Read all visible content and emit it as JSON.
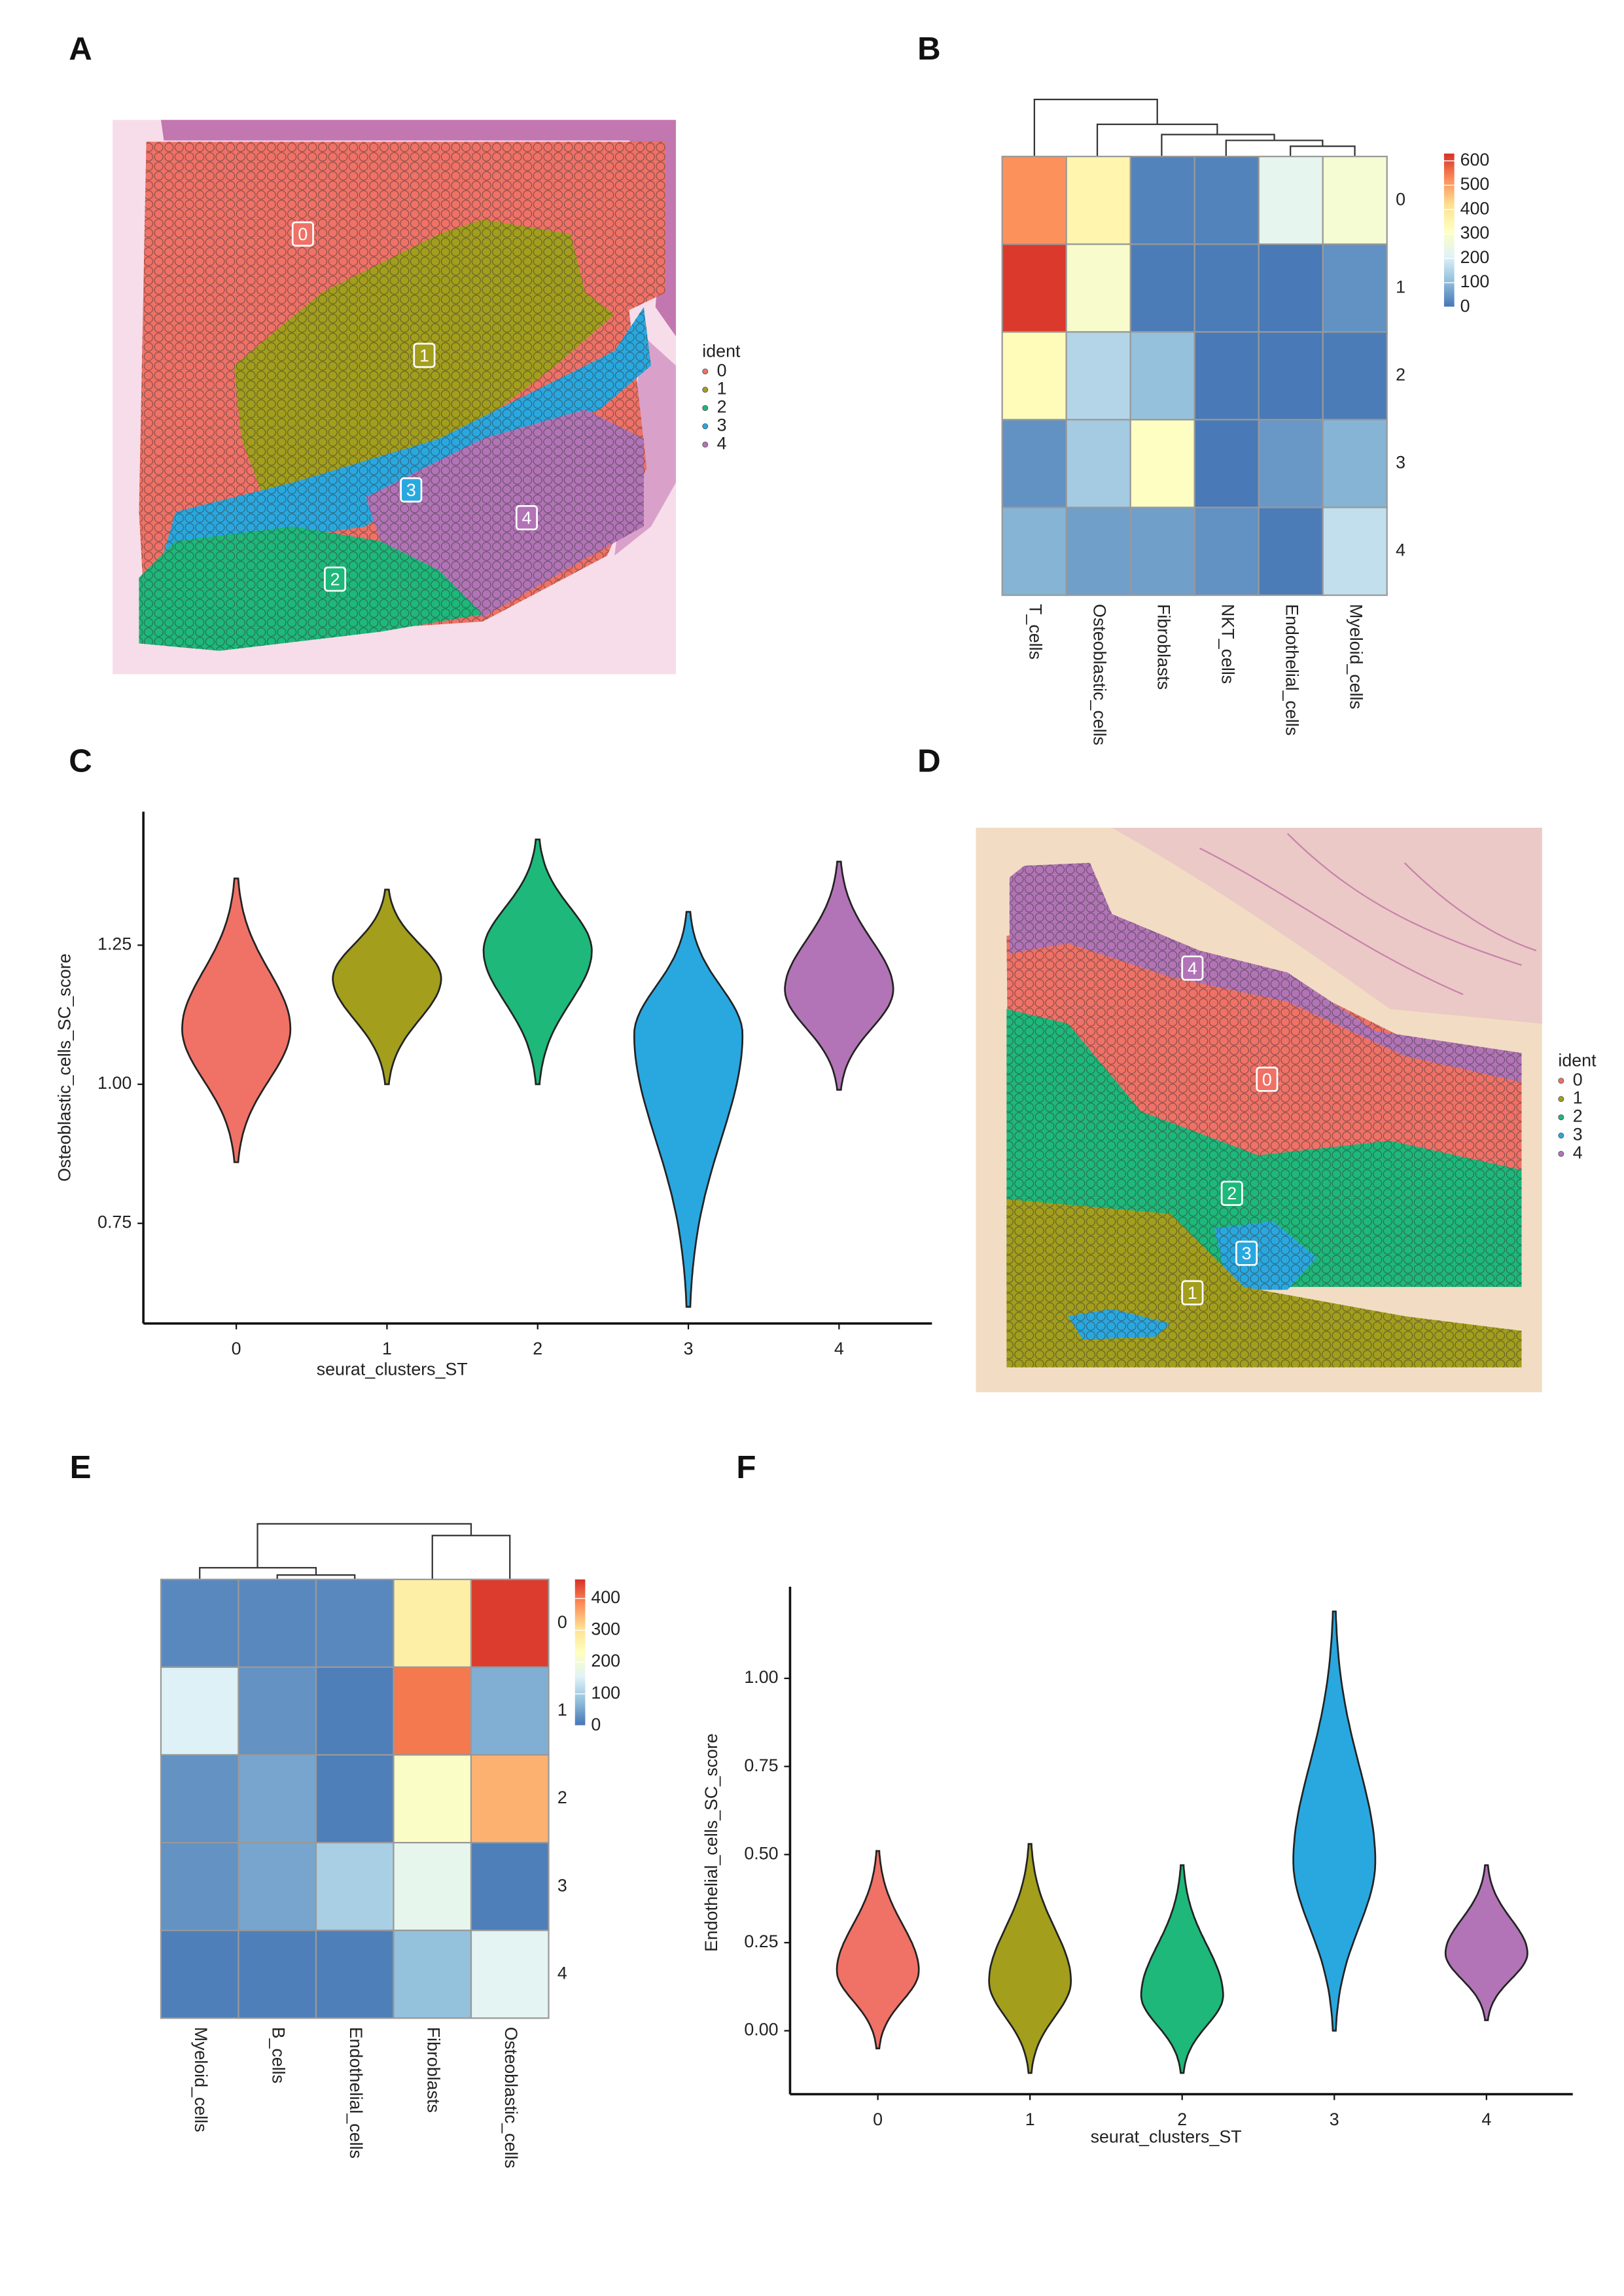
{
  "chart_data": [
    {
      "type": "spatial",
      "panel": "A",
      "legend_title": "ident",
      "series": [
        {
          "name": "0",
          "color": "#F07166"
        },
        {
          "name": "1",
          "color": "#A39E1C"
        },
        {
          "name": "2",
          "color": "#1DB87A"
        },
        {
          "name": "3",
          "color": "#29A8E0"
        },
        {
          "name": "4",
          "color": "#B274B6"
        }
      ]
    },
    {
      "type": "heatmap",
      "panel": "B",
      "rows": [
        "0",
        "1",
        "2",
        "3",
        "4"
      ],
      "columns": [
        "T_cells",
        "Osteoblastic_cells",
        "Fibroblasts",
        "NKT_cells",
        "Endothelial_cells",
        "Myeloid_cells"
      ],
      "values": [
        [
          520,
          350,
          20,
          20,
          230,
          280
        ],
        [
          620,
          290,
          10,
          10,
          5,
          40
        ],
        [
          330,
          150,
          110,
          5,
          5,
          10
        ],
        [
          40,
          130,
          310,
          5,
          50,
          90
        ],
        [
          90,
          60,
          60,
          40,
          10,
          170
        ]
      ],
      "zlim": [
        0,
        630
      ],
      "zticks": [
        0,
        100,
        200,
        300,
        400,
        500,
        600
      ],
      "colors": [
        "#4575B4",
        "#91BFDB",
        "#E0F3F8",
        "#FFFFBF",
        "#FEE090",
        "#FC8D59",
        "#D73027"
      ]
    },
    {
      "type": "violin",
      "panel": "C",
      "xlabel": "seurat_clusters_ST",
      "ylabel": "Osteoblastic_cells_SC_score",
      "categories": [
        "0",
        "1",
        "2",
        "3",
        "4"
      ],
      "colors": [
        "#F07166",
        "#A39E1C",
        "#1DB87A",
        "#29A8E0",
        "#B274B6"
      ],
      "min": [
        0.86,
        1.0,
        1.0,
        0.6,
        0.99
      ],
      "max": [
        1.37,
        1.35,
        1.44,
        1.31,
        1.4
      ],
      "peak": [
        1.1,
        1.19,
        1.24,
        1.09,
        1.17
      ],
      "ylim": [
        0.57,
        1.49
      ],
      "yticks": [
        {
          "value": 0.75,
          "label": "0.75"
        },
        {
          "value": 1.0,
          "label": "1.00"
        },
        {
          "value": 1.25,
          "label": "1.25"
        }
      ]
    },
    {
      "type": "spatial",
      "panel": "D",
      "legend_title": "ident",
      "series": [
        {
          "name": "0",
          "color": "#F07166"
        },
        {
          "name": "1",
          "color": "#A39E1C"
        },
        {
          "name": "2",
          "color": "#1DB87A"
        },
        {
          "name": "3",
          "color": "#29A8E0"
        },
        {
          "name": "4",
          "color": "#B274B6"
        }
      ]
    },
    {
      "type": "heatmap",
      "panel": "E",
      "rows": [
        "0",
        "1",
        "2",
        "3",
        "4"
      ],
      "columns": [
        "Myeloid_cells",
        "B_cells",
        "Endothelial_cells",
        "Fibroblasts",
        "Osteoblastic_cells"
      ],
      "values": [
        [
          20,
          20,
          20,
          270,
          450
        ],
        [
          150,
          30,
          10,
          400,
          60
        ],
        [
          30,
          50,
          10,
          220,
          350
        ],
        [
          30,
          50,
          100,
          170,
          10
        ],
        [
          10,
          10,
          10,
          80,
          160
        ]
      ],
      "zlim": [
        0,
        460
      ],
      "zticks": [
        0,
        100,
        200,
        300,
        400
      ],
      "colors": [
        "#4575B4",
        "#91BFDB",
        "#E0F3F8",
        "#FFFFBF",
        "#FEE090",
        "#FC8D59",
        "#D73027"
      ]
    },
    {
      "type": "violin",
      "panel": "F",
      "xlabel": "seurat_clusters_ST",
      "ylabel": "Endothelial_cells_SC_score",
      "categories": [
        "0",
        "1",
        "2",
        "3",
        "4"
      ],
      "colors": [
        "#F07166",
        "#A39E1C",
        "#1DB87A",
        "#29A8E0",
        "#B274B6"
      ],
      "min": [
        -0.05,
        -0.12,
        -0.12,
        0.0,
        0.03
      ],
      "max": [
        0.51,
        0.53,
        0.47,
        1.19,
        0.47
      ],
      "peak": [
        0.17,
        0.14,
        0.1,
        0.48,
        0.22
      ],
      "ylim": [
        -0.18,
        1.26
      ],
      "yticks": [
        {
          "value": 0.0,
          "label": "0.00"
        },
        {
          "value": 0.25,
          "label": "0.25"
        },
        {
          "value": 0.5,
          "label": "0.50"
        },
        {
          "value": 0.75,
          "label": "0.75"
        },
        {
          "value": 1.0,
          "label": "1.00"
        }
      ]
    }
  ]
}
